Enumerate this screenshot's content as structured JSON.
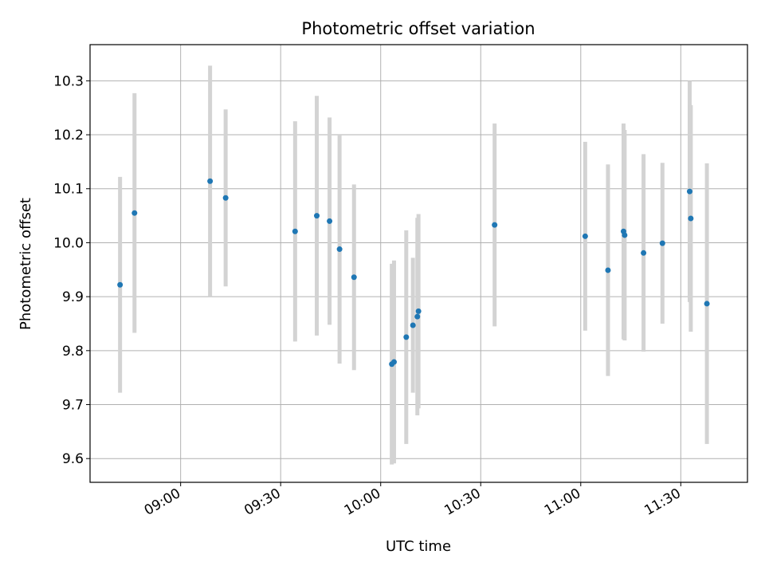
{
  "chart_data": {
    "type": "scatter",
    "title": "Photometric offset variation",
    "xlabel": "UTC time",
    "ylabel": "Photometric offset",
    "x_ticks": [
      "09:00",
      "09:30",
      "10:00",
      "10:30",
      "11:00",
      "11:30"
    ],
    "y_ticks": [
      "9.6",
      "9.7",
      "9.8",
      "9.9",
      "10.0",
      "10.1",
      "10.2",
      "10.3"
    ],
    "xlim": [
      "08:32:50",
      "11:50:00"
    ],
    "ylim": [
      9.556,
      10.367
    ],
    "grid": true,
    "colors": {
      "points": "#1f77b4",
      "errorbars": "#d3d3d3",
      "grid": "#b0b0b0"
    },
    "series": [
      {
        "points": [
          {
            "x": "08:41:50",
            "y": 9.922,
            "yerr": 0.2
          },
          {
            "x": "08:46:10",
            "y": 10.055,
            "yerr": 0.222
          },
          {
            "x": "09:08:50",
            "y": 10.114,
            "yerr": 0.214
          },
          {
            "x": "09:13:30",
            "y": 10.083,
            "yerr": 0.164
          },
          {
            "x": "09:34:20",
            "y": 10.021,
            "yerr": 0.204
          },
          {
            "x": "09:40:50",
            "y": 10.05,
            "yerr": 0.222
          },
          {
            "x": "09:44:40",
            "y": 10.04,
            "yerr": 0.192
          },
          {
            "x": "09:47:40",
            "y": 9.988,
            "yerr": 0.212
          },
          {
            "x": "09:52:00",
            "y": 9.936,
            "yerr": 0.172
          },
          {
            "x": "10:03:20",
            "y": 9.775,
            "yerr": 0.186
          },
          {
            "x": "10:04:00",
            "y": 9.779,
            "yerr": 0.188
          },
          {
            "x": "10:07:40",
            "y": 9.825,
            "yerr": 0.198
          },
          {
            "x": "10:09:40",
            "y": 9.847,
            "yerr": 0.125
          },
          {
            "x": "10:11:00",
            "y": 9.863,
            "yerr": 0.183
          },
          {
            "x": "10:11:20",
            "y": 9.873,
            "yerr": 0.18
          },
          {
            "x": "10:34:10",
            "y": 10.033,
            "yerr": 0.188
          },
          {
            "x": "11:01:20",
            "y": 10.012,
            "yerr": 0.175
          },
          {
            "x": "11:08:10",
            "y": 9.949,
            "yerr": 0.196
          },
          {
            "x": "11:12:50",
            "y": 10.021,
            "yerr": 0.2
          },
          {
            "x": "11:13:10",
            "y": 10.014,
            "yerr": 0.195
          },
          {
            "x": "11:18:50",
            "y": 9.981,
            "yerr": 0.183
          },
          {
            "x": "11:24:30",
            "y": 9.999,
            "yerr": 0.149
          },
          {
            "x": "11:32:40",
            "y": 10.095,
            "yerr": 0.205
          },
          {
            "x": "11:33:00",
            "y": 10.045,
            "yerr": 0.21
          },
          {
            "x": "11:37:50",
            "y": 9.887,
            "yerr": 0.26
          }
        ]
      }
    ]
  }
}
